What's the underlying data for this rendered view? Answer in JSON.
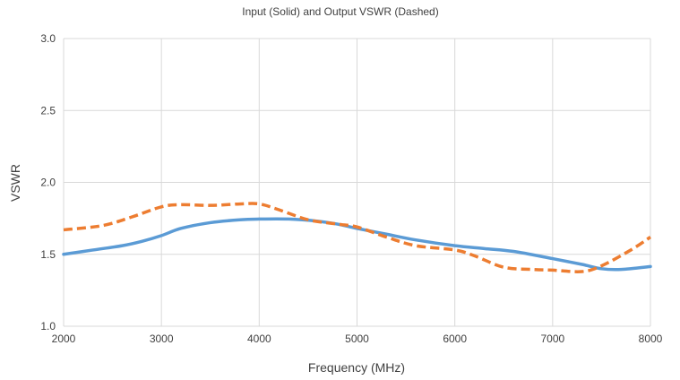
{
  "chart_data": {
    "type": "line",
    "title": "Input (Solid) and Output VSWR (Dashed)",
    "xlabel": "Frequency (MHz)",
    "ylabel": "VSWR",
    "xlim": [
      2000,
      8000
    ],
    "ylim": [
      1.0,
      3.0
    ],
    "xticks": [
      2000,
      3000,
      4000,
      5000,
      6000,
      7000,
      8000
    ],
    "yticks": [
      "1.0",
      "1.5",
      "2.0",
      "2.5",
      "3.0"
    ],
    "grid": true,
    "legend": "none",
    "series": [
      {
        "line_style": "solid",
        "color": "#5b9bd5",
        "x": [
          2000,
          2300,
          2600,
          2800,
          3000,
          3200,
          3500,
          3800,
          4000,
          4300,
          4600,
          4800,
          5000,
          5300,
          5600,
          6000,
          6300,
          6600,
          7000,
          7300,
          7500,
          7700,
          8000
        ],
        "y": [
          1.5,
          1.53,
          1.56,
          1.59,
          1.63,
          1.68,
          1.72,
          1.74,
          1.745,
          1.745,
          1.73,
          1.71,
          1.68,
          1.64,
          1.6,
          1.56,
          1.54,
          1.52,
          1.47,
          1.43,
          1.4,
          1.395,
          1.415
        ]
      },
      {
        "line_style": "dashed",
        "color": "#ed7d31",
        "x": [
          2000,
          2400,
          2700,
          3000,
          3200,
          3500,
          3800,
          4000,
          4200,
          4500,
          4800,
          5000,
          5300,
          5600,
          6000,
          6200,
          6500,
          6800,
          7000,
          7300,
          7500,
          7800,
          8000
        ],
        "y": [
          1.67,
          1.7,
          1.76,
          1.83,
          1.845,
          1.84,
          1.85,
          1.85,
          1.81,
          1.74,
          1.71,
          1.69,
          1.62,
          1.56,
          1.53,
          1.49,
          1.41,
          1.395,
          1.39,
          1.38,
          1.42,
          1.53,
          1.62
        ]
      }
    ]
  }
}
